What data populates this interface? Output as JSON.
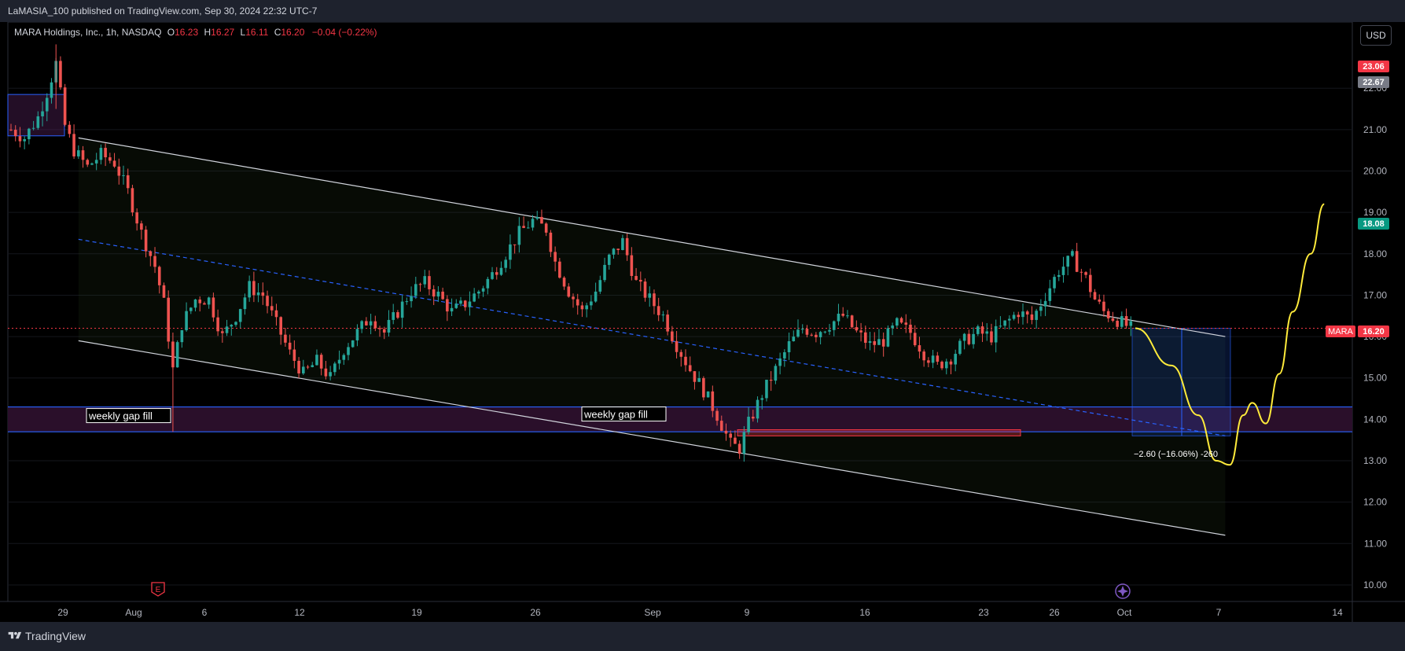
{
  "header": {
    "text": "LaMASIA_100 published on TradingView.com, Sep 30, 2024 22:32 UTC-7"
  },
  "legend": {
    "title": "MARA Holdings, Inc., 1h, NASDAQ",
    "o_label": "O",
    "o": "16.23",
    "h_label": "H",
    "h": "16.27",
    "l_label": "L",
    "l": "16.11",
    "c_label": "C",
    "c": "16.20",
    "change": "−0.04 (−0.22%)"
  },
  "currency_button": "USD",
  "footer": {
    "brand": "TradingView"
  },
  "annotations": {
    "gap_label_1": "weekly gap fill",
    "gap_label_2": "weekly gap fill",
    "measure_label": "−2.60 (−16.06%) -260"
  },
  "colors": {
    "up": "#26a69a",
    "down": "#ef5350",
    "channel": "#d1d4dc",
    "midline": "#2962ff",
    "gap_zone": "#2a0f2a",
    "forecast": "#ffeb3b",
    "price_line": "#f23645"
  },
  "chart_data": {
    "type": "candlestick",
    "symbol": "MARA",
    "interval": "1h",
    "exchange": "NASDAQ",
    "last_price": 16.2,
    "ylim": [
      9.6,
      23.6
    ],
    "y_ticks": [
      "10.00",
      "11.00",
      "12.00",
      "13.00",
      "14.00",
      "15.00",
      "16.00",
      "17.00",
      "18.00",
      "19.00",
      "20.00",
      "21.00",
      "22.00"
    ],
    "x_ticks": [
      "29",
      "Aug",
      "6",
      "12",
      "19",
      "26",
      "Sep",
      "9",
      "16",
      "23",
      "26",
      "Oct",
      "7",
      "14"
    ],
    "price_badges": [
      {
        "value": "23.06",
        "color": "#f23645"
      },
      {
        "value": "22.67",
        "color": "#787b86"
      },
      {
        "value": "18.08",
        "color": "#089981"
      },
      {
        "value": "16.20",
        "color": "#f23645",
        "label": "MARA"
      }
    ],
    "price_path": [
      [
        0,
        21.0
      ],
      [
        3,
        20.8
      ],
      [
        6,
        21.3
      ],
      [
        8,
        21.9
      ],
      [
        10,
        22.6
      ],
      [
        12,
        21.1
      ],
      [
        14,
        20.5
      ],
      [
        17,
        20.1
      ],
      [
        20,
        20.4
      ],
      [
        23,
        20.2
      ],
      [
        26,
        19.5
      ],
      [
        29,
        18.5
      ],
      [
        32,
        17.7
      ],
      [
        34,
        16.8
      ],
      [
        36,
        15.2
      ],
      [
        38,
        16.3
      ],
      [
        41,
        16.9
      ],
      [
        44,
        16.9
      ],
      [
        47,
        16.0
      ],
      [
        50,
        16.5
      ],
      [
        53,
        17.2
      ],
      [
        56,
        17.0
      ],
      [
        59,
        16.3
      ],
      [
        62,
        15.6
      ],
      [
        65,
        15.1
      ],
      [
        68,
        15.4
      ],
      [
        71,
        15.0
      ],
      [
        74,
        15.7
      ],
      [
        77,
        16.1
      ],
      [
        80,
        16.5
      ],
      [
        83,
        16.1
      ],
      [
        86,
        16.6
      ],
      [
        89,
        17.1
      ],
      [
        92,
        17.3
      ],
      [
        95,
        17.0
      ],
      [
        98,
        16.6
      ],
      [
        101,
        16.8
      ],
      [
        104,
        17.1
      ],
      [
        107,
        17.5
      ],
      [
        110,
        18.0
      ],
      [
        113,
        18.5
      ],
      [
        116,
        18.8
      ],
      [
        119,
        18.6
      ],
      [
        121,
        17.8
      ],
      [
        124,
        17.1
      ],
      [
        127,
        16.6
      ],
      [
        130,
        17.1
      ],
      [
        133,
        17.9
      ],
      [
        136,
        18.3
      ],
      [
        139,
        17.3
      ],
      [
        142,
        16.9
      ],
      [
        145,
        16.5
      ],
      [
        148,
        15.8
      ],
      [
        151,
        15.2
      ],
      [
        154,
        14.7
      ],
      [
        157,
        14.1
      ],
      [
        160,
        13.4
      ],
      [
        162,
        13.3
      ],
      [
        164,
        13.9
      ],
      [
        167,
        14.6
      ],
      [
        170,
        15.2
      ],
      [
        173,
        15.8
      ],
      [
        176,
        16.2
      ],
      [
        179,
        16.1
      ],
      [
        182,
        16.3
      ],
      [
        185,
        16.5
      ],
      [
        188,
        16.1
      ],
      [
        191,
        15.8
      ],
      [
        194,
        15.9
      ],
      [
        197,
        16.3
      ],
      [
        200,
        16.1
      ],
      [
        203,
        15.6
      ],
      [
        206,
        15.3
      ],
      [
        209,
        15.5
      ],
      [
        212,
        15.9
      ],
      [
        215,
        16.1
      ],
      [
        218,
        16.0
      ],
      [
        221,
        16.3
      ],
      [
        224,
        16.6
      ],
      [
        227,
        16.4
      ],
      [
        230,
        17.0
      ],
      [
        233,
        17.6
      ],
      [
        236,
        17.9
      ],
      [
        239,
        17.4
      ],
      [
        241,
        16.9
      ],
      [
        243,
        16.6
      ],
      [
        246,
        16.4
      ],
      [
        249,
        16.2
      ]
    ],
    "channel_upper": [
      [
        15,
        20.8
      ],
      [
        270,
        16.0
      ]
    ],
    "channel_lower": [
      [
        15,
        15.9
      ],
      [
        270,
        11.2
      ]
    ],
    "channel_mid": [
      [
        15,
        18.35
      ],
      [
        270,
        13.6
      ]
    ],
    "gap_zone": [
      13.7,
      14.3
    ],
    "forecast_path": [
      [
        250,
        16.2
      ],
      [
        258,
        15.3
      ],
      [
        264,
        14.1
      ],
      [
        268,
        13.0
      ],
      [
        271,
        12.9
      ],
      [
        274,
        14.1
      ],
      [
        276,
        14.4
      ],
      [
        279,
        13.9
      ],
      [
        282,
        15.1
      ],
      [
        285,
        16.6
      ],
      [
        289,
        18.0
      ],
      [
        292,
        19.2
      ]
    ],
    "measure_box": {
      "from": 16.2,
      "to": 13.6,
      "change": -2.6,
      "change_pct": -16.06
    },
    "red_zone": [
      13.6,
      13.75
    ],
    "events": [
      {
        "label": "E"
      }
    ]
  }
}
